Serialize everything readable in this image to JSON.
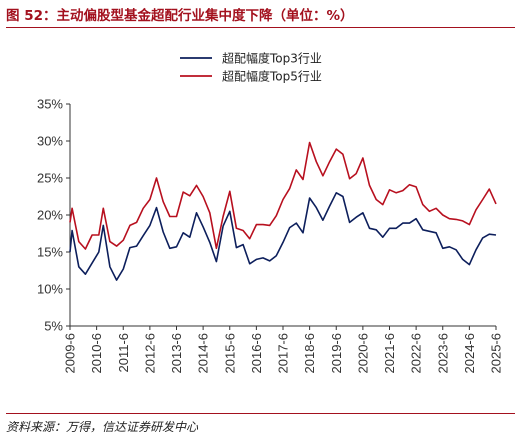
{
  "figure": {
    "title": "图 52：主动偏股型基金超配行业集中度下降（单位：%）",
    "source": "资料来源：万得，信达证券研发中心"
  },
  "chart_data": {
    "type": "line",
    "title": "",
    "xlabel": "",
    "ylabel": "",
    "ylim": [
      5,
      35
    ],
    "yticks": [
      "5%",
      "10%",
      "15%",
      "20%",
      "25%",
      "30%",
      "35%"
    ],
    "xticks": [
      "2009-6",
      "2010-6",
      "2011-6",
      "2012-6",
      "2013-6",
      "2014-6",
      "2015-6",
      "2016-6",
      "2017-6",
      "2018-6",
      "2019-6",
      "2020-6",
      "2021-6",
      "2022-6",
      "2023-6",
      "2024-6",
      "2025-6"
    ],
    "legend_position": "top-center",
    "grid": false,
    "series": [
      {
        "name": "超配幅度Top3行业",
        "color": "#0d1f5c",
        "x": [
          2009.5,
          2009.58,
          2009.83,
          2010.08,
          2010.33,
          2010.58,
          2010.75,
          2011.0,
          2011.25,
          2011.5,
          2011.75,
          2012.0,
          2012.25,
          2012.5,
          2012.75,
          2013.0,
          2013.25,
          2013.5,
          2013.75,
          2014.0,
          2014.25,
          2014.5,
          2014.75,
          2015.0,
          2015.25,
          2015.5,
          2015.75,
          2016.0,
          2016.25,
          2016.5,
          2016.75,
          2017.0,
          2017.25,
          2017.5,
          2017.75,
          2018.0,
          2018.25,
          2018.5,
          2018.75,
          2019.0,
          2019.25,
          2019.5,
          2019.75,
          2020.0,
          2020.25,
          2020.5,
          2020.75,
          2021.0,
          2021.25,
          2021.5,
          2021.75,
          2022.0,
          2022.25,
          2022.5,
          2022.75,
          2023.0,
          2023.25,
          2023.5,
          2023.75,
          2024.0,
          2024.25,
          2024.5,
          2024.75,
          2025.0,
          2025.25,
          2025.5
        ],
        "values": [
          15.0,
          17.9,
          13.0,
          12.0,
          13.5,
          15.0,
          18.6,
          13.0,
          11.2,
          12.7,
          15.6,
          15.8,
          17.2,
          18.6,
          21.0,
          17.7,
          15.5,
          15.7,
          17.6,
          17.0,
          20.3,
          18.4,
          16.3,
          13.7,
          18.5,
          20.5,
          15.6,
          16.0,
          13.4,
          14.0,
          14.2,
          13.8,
          14.5,
          16.3,
          18.3,
          18.9,
          17.6,
          22.3,
          21.0,
          19.3,
          21.2,
          23.0,
          22.5,
          19.0,
          19.7,
          20.3,
          18.2,
          18.0,
          17.0,
          18.2,
          18.2,
          18.9,
          18.9,
          19.5,
          18.0,
          17.8,
          17.6,
          15.5,
          15.7,
          15.3,
          14.0,
          13.3,
          15.3,
          16.9,
          17.4,
          17.3
        ]
      },
      {
        "name": "超配幅度Top5行业",
        "color": "#b8101f",
        "x": [
          2009.5,
          2009.58,
          2009.83,
          2010.08,
          2010.33,
          2010.58,
          2010.75,
          2011.0,
          2011.25,
          2011.5,
          2011.75,
          2012.0,
          2012.25,
          2012.5,
          2012.75,
          2013.0,
          2013.25,
          2013.5,
          2013.75,
          2014.0,
          2014.25,
          2014.5,
          2014.75,
          2015.0,
          2015.25,
          2015.5,
          2015.75,
          2016.0,
          2016.25,
          2016.5,
          2016.75,
          2017.0,
          2017.25,
          2017.5,
          2017.75,
          2018.0,
          2018.25,
          2018.5,
          2018.75,
          2019.0,
          2019.25,
          2019.5,
          2019.75,
          2020.0,
          2020.25,
          2020.5,
          2020.75,
          2021.0,
          2021.25,
          2021.5,
          2021.75,
          2022.0,
          2022.25,
          2022.5,
          2022.75,
          2023.0,
          2023.25,
          2023.5,
          2023.75,
          2024.0,
          2024.25,
          2024.5,
          2024.75,
          2025.0,
          2025.25,
          2025.5
        ],
        "values": [
          19.0,
          20.9,
          16.4,
          15.4,
          17.3,
          17.3,
          20.9,
          16.4,
          15.8,
          16.6,
          18.6,
          19.0,
          20.9,
          22.1,
          25.0,
          21.8,
          19.8,
          19.8,
          23.1,
          22.6,
          24.0,
          22.5,
          20.3,
          15.5,
          19.8,
          23.2,
          18.2,
          17.9,
          16.8,
          18.7,
          18.7,
          18.6,
          19.9,
          22.1,
          23.6,
          26.1,
          24.8,
          29.8,
          27.2,
          25.3,
          27.2,
          28.9,
          28.2,
          24.9,
          25.6,
          27.7,
          24.0,
          22.1,
          21.4,
          23.4,
          23.0,
          23.3,
          24.1,
          23.8,
          21.4,
          20.5,
          20.9,
          20.0,
          19.5,
          19.4,
          19.2,
          18.7,
          20.7,
          22.1,
          23.5,
          21.5
        ]
      }
    ]
  }
}
